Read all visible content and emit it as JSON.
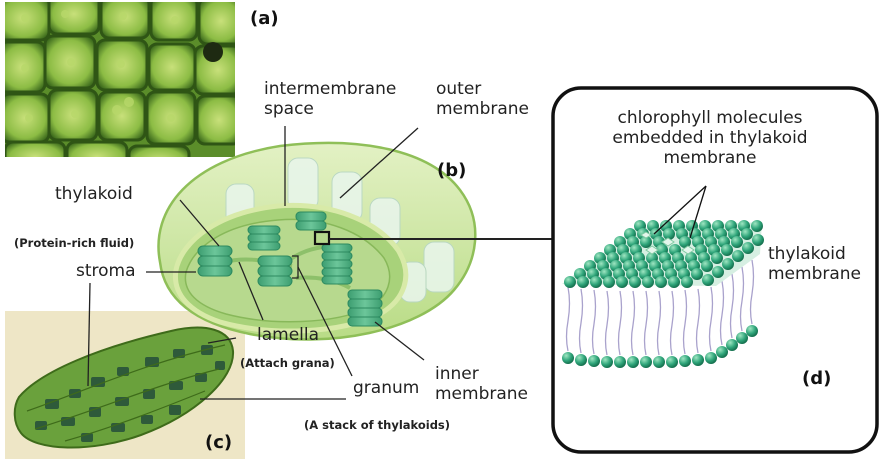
{
  "panel_tags": {
    "a": "(a)",
    "b": "(b)",
    "c": "(c)",
    "d": "(d)"
  },
  "labels": {
    "intermembrane_line1": "intermembrane",
    "intermembrane_line2": "space",
    "outer_line1": "outer",
    "outer_line2": "membrane",
    "thylakoid": "thylakoid",
    "stroma": "stroma",
    "lamella": "lamella",
    "granum": "granum",
    "inner_line1": "inner",
    "inner_line2": "membrane"
  },
  "notes": {
    "protein_rich": "(Protein-rich fluid)",
    "attach_grana": "(Attach grana)",
    "stack": "(A stack of thylakoids)"
  },
  "inset": {
    "title_line1": "chlorophyll molecules",
    "title_line2": "embedded in thylakoid",
    "title_line3": "membrane",
    "side_line1": "thylakoid",
    "side_line2": "membrane"
  },
  "colors": {
    "chloroplast_fill": "#cfe6a6",
    "chloroplast_edge": "#8fbf58",
    "thylakoid_green": "#4fb486",
    "head_green": "#2fa57a",
    "tail_purple": "#a9a2cc",
    "photo_green": "#6aa13c",
    "micro_bg": "#eee6c6"
  }
}
